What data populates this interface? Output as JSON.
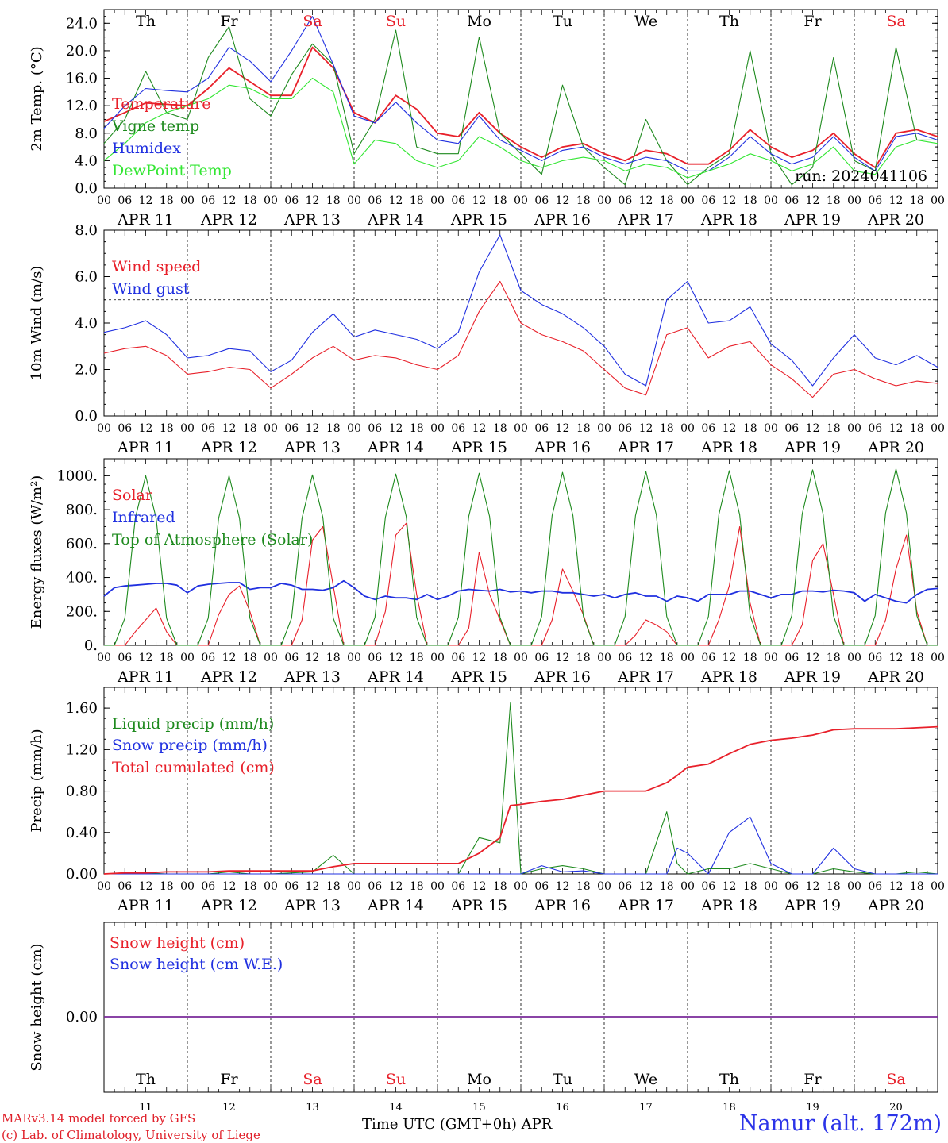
{
  "station_label": "Namur (alt. 172m)",
  "credits": [
    "MARv3.14 model forced by GFS",
    "(c) Lab. of Climatology, University of Liege"
  ],
  "xaxis_title": "Time UTC (GMT+0h) APR",
  "run_label": "run: 2024041106",
  "weekdays": [
    "Th",
    "Fr",
    "Sa",
    "Su",
    "Mo",
    "Tu",
    "We",
    "Th",
    "Fr",
    "Sa"
  ],
  "weekend_flags": [
    false,
    false,
    true,
    true,
    false,
    false,
    false,
    false,
    false,
    true
  ],
  "dates": [
    "APR 11",
    "APR 12",
    "APR 13",
    "APR 14",
    "APR 15",
    "APR 16",
    "APR 17",
    "APR 18",
    "APR 19",
    "APR 20"
  ],
  "day_numbers": [
    "11",
    "12",
    "13",
    "14",
    "15",
    "16",
    "17",
    "18",
    "19",
    "20"
  ],
  "hour_ticks": [
    "00",
    "06",
    "12",
    "18"
  ],
  "colors": {
    "red": "#e8202a",
    "blue": "#2030e0",
    "green": "#1e8a1e",
    "lightgreen": "#33e633",
    "purple": "#7a2a9a",
    "weekend": "#e8202a"
  },
  "chart_data": [
    {
      "type": "line",
      "ylabel": "2m Temp. (°C)",
      "ylim": [
        0,
        26
      ],
      "yticks": [
        "0.0",
        "4.0",
        "8.0",
        "12.0",
        "16.0",
        "20.0",
        "24.0"
      ],
      "x_hours_since_apr11_00": [
        0,
        6,
        12,
        18,
        24,
        30,
        36,
        42,
        48,
        54,
        60,
        66,
        72,
        78,
        84,
        90,
        96,
        102,
        108,
        114,
        120,
        126,
        132,
        138,
        144,
        150,
        156,
        162,
        168,
        174,
        180,
        186,
        192,
        198,
        204,
        210,
        216,
        222,
        228,
        234,
        240
      ],
      "series": [
        {
          "name": "Temperature",
          "color": "red",
          "values": [
            9.7,
            11.0,
            12.4,
            12.2,
            12.0,
            14.5,
            17.5,
            15.5,
            13.5,
            13.5,
            20.5,
            17.5,
            11.0,
            9.5,
            13.5,
            11.5,
            8.0,
            7.5,
            11.0,
            8.0,
            6.0,
            4.5,
            6.0,
            6.5,
            5.0,
            4.0,
            5.5,
            5.0,
            3.5,
            3.5,
            5.5,
            8.5,
            6.0,
            4.5,
            5.5,
            8.0,
            5.0,
            3.0,
            8.0,
            8.5,
            7.5
          ]
        },
        {
          "name": "Vigne temp",
          "color": "green",
          "values": [
            6.5,
            10.0,
            17.0,
            11.0,
            10.0,
            19.0,
            23.5,
            13.0,
            10.5,
            16.5,
            21.0,
            18.0,
            5.0,
            10.0,
            23.0,
            6.0,
            5.0,
            5.0,
            22.0,
            8.0,
            5.0,
            2.0,
            15.0,
            6.0,
            3.0,
            0.5,
            10.0,
            4.0,
            0.5,
            3.0,
            5.0,
            20.0,
            5.0,
            0.5,
            3.0,
            19.0,
            4.0,
            2.5,
            20.5,
            7.0,
            7.0
          ]
        },
        {
          "name": "Humidex",
          "color": "blue",
          "values": [
            8.7,
            12.0,
            14.5,
            14.2,
            14.0,
            16.0,
            20.5,
            18.5,
            15.5,
            20.0,
            25.0,
            18.0,
            10.5,
            9.5,
            12.5,
            9.5,
            7.0,
            6.5,
            10.5,
            7.0,
            5.5,
            4.0,
            5.5,
            6.0,
            4.5,
            3.5,
            4.5,
            4.0,
            2.5,
            2.5,
            4.5,
            7.5,
            5.0,
            3.5,
            4.5,
            7.5,
            4.5,
            2.5,
            7.5,
            8.0,
            7.0
          ]
        },
        {
          "name": "DewPoint Temp",
          "color": "lightgreen",
          "values": [
            4.0,
            6.5,
            9.5,
            11.0,
            12.0,
            13.0,
            15.0,
            14.5,
            13.0,
            13.0,
            16.0,
            14.0,
            3.5,
            7.0,
            6.5,
            4.0,
            3.0,
            4.0,
            7.5,
            6.0,
            4.0,
            3.0,
            4.0,
            4.5,
            4.0,
            2.5,
            3.5,
            3.0,
            1.5,
            2.5,
            3.5,
            5.0,
            4.0,
            2.5,
            3.5,
            6.0,
            2.5,
            2.0,
            6.0,
            7.0,
            6.5
          ]
        }
      ]
    },
    {
      "type": "line",
      "ylabel": "10m Wind (m/s)",
      "ylim": [
        0,
        8
      ],
      "yticks": [
        "0.0",
        "2.0",
        "4.0",
        "6.0",
        "8.0"
      ],
      "reference_line": 5.0,
      "x_hours_since_apr11_00": [
        0,
        6,
        12,
        18,
        24,
        30,
        36,
        42,
        48,
        54,
        60,
        66,
        72,
        78,
        84,
        90,
        96,
        102,
        108,
        114,
        120,
        126,
        132,
        138,
        144,
        150,
        156,
        162,
        168,
        174,
        180,
        186,
        192,
        198,
        204,
        210,
        216,
        222,
        228,
        234,
        240
      ],
      "series": [
        {
          "name": "Wind speed",
          "color": "red",
          "values": [
            2.7,
            2.9,
            3.0,
            2.6,
            1.8,
            1.9,
            2.1,
            2.0,
            1.2,
            1.8,
            2.5,
            3.0,
            2.4,
            2.6,
            2.5,
            2.2,
            2.0,
            2.6,
            4.5,
            5.8,
            4.0,
            3.5,
            3.2,
            2.8,
            2.0,
            1.2,
            0.9,
            3.5,
            3.8,
            2.5,
            3.0,
            3.2,
            2.2,
            1.6,
            0.8,
            1.8,
            2.0,
            1.6,
            1.3,
            1.5,
            1.4
          ]
        },
        {
          "name": "Wind gust",
          "color": "blue",
          "values": [
            3.6,
            3.8,
            4.1,
            3.5,
            2.5,
            2.6,
            2.9,
            2.8,
            1.9,
            2.4,
            3.6,
            4.4,
            3.4,
            3.7,
            3.5,
            3.3,
            2.9,
            3.6,
            6.2,
            7.8,
            5.4,
            4.8,
            4.4,
            3.8,
            3.0,
            1.8,
            1.3,
            5.0,
            5.8,
            4.0,
            4.1,
            4.7,
            3.1,
            2.4,
            1.3,
            2.5,
            3.5,
            2.5,
            2.2,
            2.6,
            2.1
          ]
        }
      ]
    },
    {
      "type": "line",
      "ylabel": "Energy fluxes (W/m²)",
      "ylim": [
        0,
        1100
      ],
      "yticks": [
        "0.",
        "200.",
        "400.",
        "600.",
        "800.",
        "1000."
      ],
      "x_hours_since_apr11_00": [
        0,
        3,
        6,
        9,
        12,
        15,
        18,
        21,
        24,
        27,
        30,
        33,
        36,
        39,
        42,
        45,
        48,
        51,
        54,
        57,
        60,
        63,
        66,
        69,
        72,
        75,
        78,
        81,
        84,
        87,
        90,
        93,
        96,
        99,
        102,
        105,
        108,
        111,
        114,
        117,
        120,
        123,
        126,
        129,
        132,
        135,
        138,
        141,
        144,
        147,
        150,
        153,
        156,
        159,
        162,
        165,
        168,
        171,
        174,
        177,
        180,
        183,
        186,
        189,
        192,
        195,
        198,
        201,
        204,
        207,
        210,
        213,
        216,
        219,
        222,
        225,
        228,
        231,
        234,
        237,
        240
      ],
      "series": [
        {
          "name": "Solar",
          "color": "red",
          "values": [
            0,
            0,
            0,
            80,
            150,
            220,
            80,
            0,
            0,
            0,
            0,
            180,
            300,
            350,
            200,
            0,
            0,
            0,
            0,
            150,
            620,
            700,
            350,
            0,
            0,
            0,
            0,
            200,
            650,
            720,
            300,
            0,
            0,
            0,
            0,
            100,
            550,
            300,
            150,
            0,
            0,
            0,
            0,
            150,
            450,
            320,
            180,
            0,
            0,
            0,
            0,
            60,
            150,
            120,
            80,
            0,
            0,
            0,
            0,
            150,
            350,
            700,
            250,
            0,
            0,
            0,
            0,
            120,
            500,
            600,
            300,
            0,
            0,
            0,
            0,
            150,
            450,
            650,
            200,
            0,
            0
          ]
        },
        {
          "name": "Infrared",
          "color": "blue",
          "values": [
            290,
            340,
            350,
            355,
            360,
            365,
            365,
            355,
            310,
            350,
            360,
            365,
            370,
            370,
            330,
            340,
            340,
            365,
            355,
            330,
            330,
            325,
            340,
            380,
            340,
            290,
            270,
            290,
            280,
            280,
            270,
            300,
            270,
            290,
            320,
            330,
            325,
            320,
            330,
            315,
            320,
            310,
            320,
            320,
            310,
            310,
            300,
            290,
            300,
            280,
            300,
            310,
            290,
            290,
            260,
            290,
            280,
            260,
            300,
            300,
            300,
            320,
            320,
            300,
            280,
            300,
            300,
            320,
            320,
            315,
            325,
            320,
            310,
            260,
            300,
            280,
            260,
            250,
            300,
            330,
            335
          ]
        },
        {
          "name": "Top of Atmosphere (Solar)",
          "color": "green",
          "values": [
            0,
            0,
            160,
            750,
            1000,
            750,
            160,
            0,
            0,
            0,
            160,
            750,
            1000,
            750,
            160,
            0,
            0,
            0,
            160,
            750,
            1005,
            755,
            160,
            0,
            0,
            0,
            165,
            755,
            1010,
            760,
            165,
            0,
            0,
            0,
            165,
            760,
            1015,
            760,
            165,
            0,
            0,
            0,
            170,
            765,
            1020,
            765,
            170,
            0,
            0,
            0,
            170,
            765,
            1025,
            770,
            170,
            0,
            0,
            0,
            170,
            770,
            1030,
            770,
            175,
            0,
            0,
            0,
            175,
            775,
            1035,
            775,
            175,
            0,
            0,
            0,
            175,
            780,
            1040,
            780,
            175,
            0,
            0,
            0,
            0
          ]
        }
      ]
    },
    {
      "type": "line",
      "ylabel": "Precip (mm/h)",
      "ylim": [
        0,
        1.8
      ],
      "yticks": [
        "0.00",
        "0.40",
        "0.80",
        "1.20",
        "1.60"
      ],
      "x_hours_since_apr11_00": [
        0,
        6,
        12,
        18,
        24,
        30,
        36,
        42,
        48,
        54,
        60,
        66,
        72,
        78,
        84,
        90,
        96,
        102,
        108,
        114,
        117,
        120,
        126,
        132,
        138,
        144,
        150,
        156,
        162,
        165,
        168,
        174,
        180,
        186,
        192,
        198,
        204,
        210,
        216,
        222,
        228,
        234,
        240
      ],
      "series": [
        {
          "name": "Liquid precip (mm/h)",
          "color": "green",
          "values": [
            0,
            0,
            0.01,
            0,
            0,
            0,
            0.02,
            0,
            0,
            0.01,
            0.02,
            0.18,
            0,
            0,
            0,
            0,
            0,
            0,
            0.35,
            0.3,
            1.65,
            0,
            0.05,
            0.08,
            0.05,
            0,
            0,
            0,
            0.6,
            0.1,
            0,
            0.05,
            0.05,
            0.1,
            0.05,
            0,
            0,
            0.05,
            0.02,
            0,
            0,
            0.02,
            0
          ]
        },
        {
          "name": "Snow precip (mm/h)",
          "color": "blue",
          "values": [
            0,
            0,
            0,
            0,
            0,
            0,
            0,
            0,
            0,
            0,
            0,
            0,
            0,
            0,
            0,
            0,
            0,
            0,
            0,
            0,
            0,
            0,
            0.08,
            0.02,
            0.03,
            0,
            0,
            0,
            0,
            0.25,
            0.2,
            0,
            0.4,
            0.55,
            0.1,
            0,
            0,
            0.25,
            0.05,
            0,
            0,
            0,
            0
          ]
        },
        {
          "name": "Total cumulated (cm)",
          "color": "red",
          "values": [
            0,
            0.01,
            0.01,
            0.02,
            0.02,
            0.02,
            0.03,
            0.03,
            0.03,
            0.03,
            0.03,
            0.07,
            0.1,
            0.1,
            0.1,
            0.1,
            0.1,
            0.1,
            0.2,
            0.35,
            0.66,
            0.67,
            0.7,
            0.72,
            0.76,
            0.8,
            0.8,
            0.8,
            0.88,
            0.95,
            1.03,
            1.06,
            1.16,
            1.25,
            1.29,
            1.31,
            1.34,
            1.39,
            1.4,
            1.4,
            1.4,
            1.41,
            1.42
          ]
        }
      ]
    },
    {
      "type": "line",
      "ylabel": "Snow height (cm)",
      "yticks": [
        "0.00"
      ],
      "x_hours_since_apr11_00": [
        0,
        240
      ],
      "series": [
        {
          "name": "Snow height (cm)",
          "color": "red",
          "values": [
            0,
            0
          ]
        },
        {
          "name": "Snow height (cm W.E.)",
          "color": "blue",
          "values": [
            0,
            0
          ]
        }
      ]
    }
  ]
}
